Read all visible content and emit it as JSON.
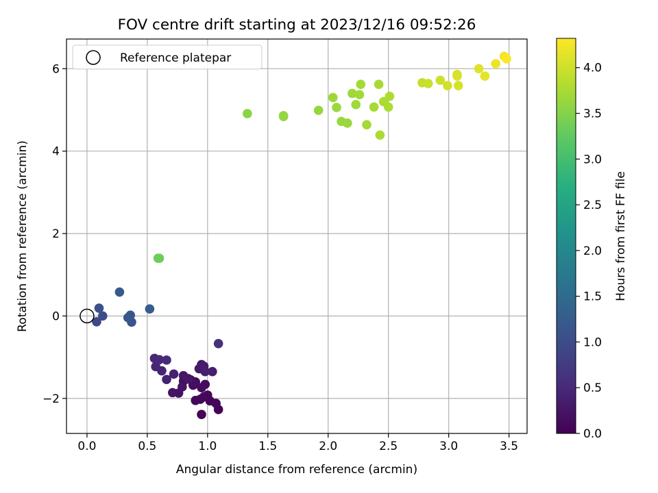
{
  "chart_data": {
    "type": "scatter",
    "title": "FOV centre drift starting at 2023/12/16 09:52:26",
    "xlabel": "Angular distance from reference (arcmin)",
    "ylabel": "Rotation from reference (arcmin)",
    "xlim": [
      -0.17,
      3.65
    ],
    "ylim": [
      -2.85,
      6.72
    ],
    "xticks": [
      0.0,
      0.5,
      1.0,
      1.5,
      2.0,
      2.5,
      3.0,
      3.5
    ],
    "xtick_labels": [
      "0.0",
      "0.5",
      "1.0",
      "1.5",
      "2.0",
      "2.5",
      "3.0",
      "3.5"
    ],
    "yticks": [
      -2,
      0,
      2,
      4,
      6
    ],
    "ytick_labels": [
      "−2",
      "0",
      "2",
      "4",
      "6"
    ],
    "grid": true,
    "legend": {
      "position": "top-left",
      "entries": [
        "Reference platepar"
      ]
    },
    "reference_point": {
      "x": 0.0,
      "y": 0.0
    },
    "colorbar": {
      "label": "Hours from first FF file",
      "min": 0.0,
      "max": 4.32,
      "ticks": [
        0.0,
        0.5,
        1.0,
        1.5,
        2.0,
        2.5,
        3.0,
        3.5,
        4.0
      ],
      "tick_labels": [
        "0.0",
        "0.5",
        "1.0",
        "1.5",
        "2.0",
        "2.5",
        "3.0",
        "3.5",
        "4.0"
      ],
      "colormap": "viridis"
    },
    "points": [
      {
        "x": 0.95,
        "y": -2.39,
        "c": 0.02
      },
      {
        "x": 1.09,
        "y": -2.27,
        "c": 0.04
      },
      {
        "x": 1.02,
        "y": -2.06,
        "c": 0.05
      },
      {
        "x": 1.07,
        "y": -2.12,
        "c": 0.06
      },
      {
        "x": 0.94,
        "y": -2.02,
        "c": 0.07
      },
      {
        "x": 0.9,
        "y": -2.05,
        "c": 0.08
      },
      {
        "x": 1.0,
        "y": -1.92,
        "c": 0.09
      },
      {
        "x": 0.97,
        "y": -1.96,
        "c": 0.1
      },
      {
        "x": 0.88,
        "y": -1.68,
        "c": 0.12
      },
      {
        "x": 0.95,
        "y": -1.74,
        "c": 0.13
      },
      {
        "x": 0.98,
        "y": -1.66,
        "c": 0.14
      },
      {
        "x": 0.9,
        "y": -1.6,
        "c": 0.15
      },
      {
        "x": 0.86,
        "y": -1.55,
        "c": 0.17
      },
      {
        "x": 0.8,
        "y": -1.58,
        "c": 0.18
      },
      {
        "x": 0.76,
        "y": -1.87,
        "c": 0.2
      },
      {
        "x": 0.71,
        "y": -1.86,
        "c": 0.22
      },
      {
        "x": 0.79,
        "y": -1.72,
        "c": 0.23
      },
      {
        "x": 0.8,
        "y": -1.45,
        "c": 0.25
      },
      {
        "x": 0.84,
        "y": -1.52,
        "c": 0.27
      },
      {
        "x": 0.93,
        "y": -1.28,
        "c": 0.29
      },
      {
        "x": 0.95,
        "y": -1.18,
        "c": 0.31
      },
      {
        "x": 0.97,
        "y": -1.22,
        "c": 0.33
      },
      {
        "x": 0.98,
        "y": -1.35,
        "c": 0.35
      },
      {
        "x": 1.04,
        "y": -1.35,
        "c": 0.37
      },
      {
        "x": 0.72,
        "y": -1.41,
        "c": 0.39
      },
      {
        "x": 0.66,
        "y": -1.54,
        "c": 0.41
      },
      {
        "x": 0.62,
        "y": -1.33,
        "c": 0.43
      },
      {
        "x": 0.57,
        "y": -1.23,
        "c": 0.45
      },
      {
        "x": 0.56,
        "y": -1.03,
        "c": 0.47
      },
      {
        "x": 0.6,
        "y": -1.06,
        "c": 0.49
      },
      {
        "x": 0.66,
        "y": -1.07,
        "c": 0.51
      },
      {
        "x": 1.09,
        "y": -0.67,
        "c": 0.6
      },
      {
        "x": 0.08,
        "y": -0.14,
        "c": 0.95
      },
      {
        "x": 0.13,
        "y": 0.0,
        "c": 1.0
      },
      {
        "x": 0.1,
        "y": 0.19,
        "c": 1.05
      },
      {
        "x": 0.37,
        "y": -0.15,
        "c": 1.1
      },
      {
        "x": 0.34,
        "y": -0.04,
        "c": 1.14
      },
      {
        "x": 0.36,
        "y": 0.02,
        "c": 1.18
      },
      {
        "x": 0.27,
        "y": 0.58,
        "c": 1.22
      },
      {
        "x": 0.52,
        "y": 0.17,
        "c": 1.28
      },
      {
        "x": 0.59,
        "y": 1.4,
        "c": 3.3
      },
      {
        "x": 0.6,
        "y": 1.4,
        "c": 3.35
      },
      {
        "x": 1.33,
        "y": 4.91,
        "c": 3.55
      },
      {
        "x": 1.63,
        "y": 4.84,
        "c": 3.58
      },
      {
        "x": 1.63,
        "y": 4.86,
        "c": 3.6
      },
      {
        "x": 1.92,
        "y": 4.99,
        "c": 3.62
      },
      {
        "x": 2.11,
        "y": 4.72,
        "c": 3.64
      },
      {
        "x": 2.16,
        "y": 4.68,
        "c": 3.65
      },
      {
        "x": 2.07,
        "y": 5.06,
        "c": 3.66
      },
      {
        "x": 2.04,
        "y": 5.3,
        "c": 3.67
      },
      {
        "x": 2.2,
        "y": 5.4,
        "c": 3.68
      },
      {
        "x": 2.23,
        "y": 5.13,
        "c": 3.69
      },
      {
        "x": 2.26,
        "y": 5.37,
        "c": 3.7
      },
      {
        "x": 2.27,
        "y": 5.62,
        "c": 3.71
      },
      {
        "x": 2.32,
        "y": 4.64,
        "c": 3.72
      },
      {
        "x": 2.38,
        "y": 5.07,
        "c": 3.73
      },
      {
        "x": 2.42,
        "y": 5.62,
        "c": 3.74
      },
      {
        "x": 2.43,
        "y": 4.39,
        "c": 3.75
      },
      {
        "x": 2.46,
        "y": 5.2,
        "c": 3.76
      },
      {
        "x": 2.5,
        "y": 5.07,
        "c": 3.77
      },
      {
        "x": 2.51,
        "y": 5.33,
        "c": 3.78
      },
      {
        "x": 2.78,
        "y": 5.66,
        "c": 3.95
      },
      {
        "x": 2.83,
        "y": 5.64,
        "c": 3.97
      },
      {
        "x": 2.93,
        "y": 5.72,
        "c": 3.99
      },
      {
        "x": 2.99,
        "y": 5.59,
        "c": 4.01
      },
      {
        "x": 3.07,
        "y": 5.86,
        "c": 4.03
      },
      {
        "x": 3.08,
        "y": 5.59,
        "c": 4.05
      },
      {
        "x": 3.07,
        "y": 5.82,
        "c": 4.07
      },
      {
        "x": 3.25,
        "y": 6.0,
        "c": 4.12
      },
      {
        "x": 3.3,
        "y": 5.82,
        "c": 4.15
      },
      {
        "x": 3.39,
        "y": 6.12,
        "c": 4.2
      },
      {
        "x": 3.46,
        "y": 6.3,
        "c": 4.25
      },
      {
        "x": 3.48,
        "y": 6.24,
        "c": 4.3
      }
    ]
  }
}
